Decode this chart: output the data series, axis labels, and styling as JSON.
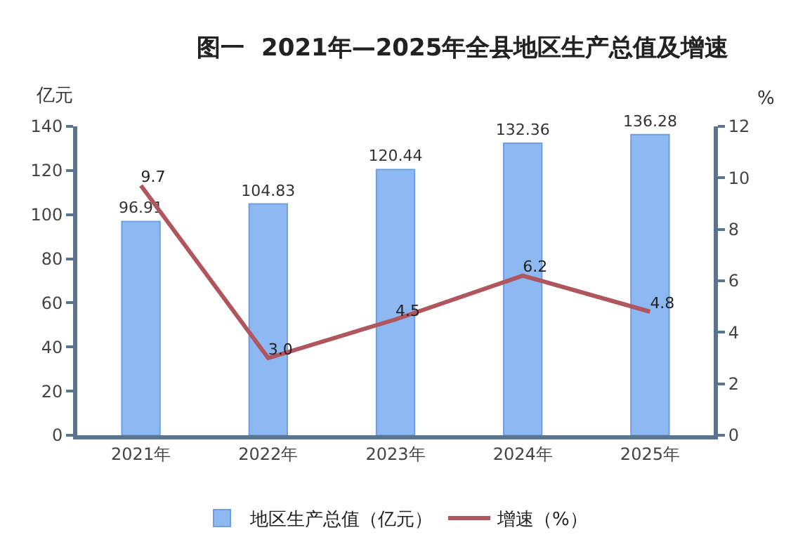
{
  "chart_data": {
    "type": "bar",
    "title": "图一  2021年—2025年全县地区生产总值及增速",
    "ylabel": "亿元",
    "y2label": "%",
    "categories": [
      "2021年",
      "2022年",
      "2023年",
      "2024年",
      "2025年"
    ],
    "series": [
      {
        "name": "地区生产总值（亿元）",
        "color": "#8db8f2",
        "values": [
          96.91,
          104.83,
          120.44,
          132.36,
          136.28
        ]
      },
      {
        "name": "增速（%）",
        "type": "line",
        "axis": "y2",
        "color": "#b0565e",
        "values": [
          9.7,
          3.0,
          4.5,
          6.2,
          4.8
        ],
        "value_labels": [
          "9.7",
          "3.0",
          "4.5",
          "6.2",
          "4.8"
        ]
      }
    ],
    "data_labels": true,
    "ylim": [
      0,
      140
    ],
    "yticks": [
      0,
      20,
      40,
      60,
      80,
      100,
      120,
      140
    ],
    "y2lim": [
      0,
      12
    ],
    "y2ticks": [
      0,
      2,
      4,
      6,
      8,
      10,
      12
    ],
    "grid": false,
    "legend": "bottom",
    "marker": "none",
    "line_style": "solid"
  }
}
